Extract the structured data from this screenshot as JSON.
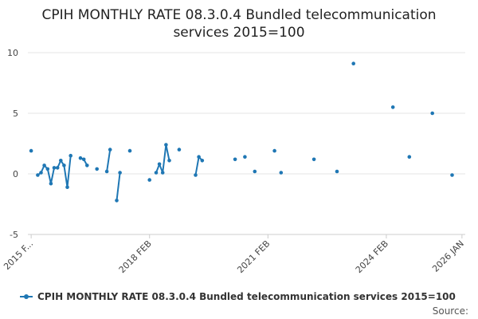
{
  "colors": {
    "series": "#1f77b4",
    "grid": "#e6e6e6",
    "axis": "#cccccc"
  },
  "source_label": "Source:",
  "chart_data": {
    "type": "line",
    "title_line1": "CPIH MONTHLY RATE 08.3.0.4 Bundled telecommunication",
    "title_line2": "services 2015=100",
    "ylim": [
      -5,
      10
    ],
    "yticks": [
      -5,
      0,
      5,
      10
    ],
    "xlim": [
      "2015-01",
      "2026-02"
    ],
    "xticks": [
      {
        "x": "2015-02",
        "label": "2015 F..."
      },
      {
        "x": "2018-02",
        "label": "2018 FEB"
      },
      {
        "x": "2021-02",
        "label": "2021 FEB"
      },
      {
        "x": "2024-02",
        "label": "2024 FEB"
      },
      {
        "x": "2026-01",
        "label": "2026 JAN"
      }
    ],
    "grid": "horizontal",
    "legend_position": "bottom",
    "series": [
      {
        "name": "CPIH MONTHLY RATE 08.3.0.4 Bundled telecommunication services 2015=100",
        "segments": [
          [
            [
              "2015-02",
              1.9
            ]
          ],
          [
            [
              "2015-04",
              -0.1
            ],
            [
              "2015-05",
              0.1
            ],
            [
              "2015-06",
              0.7
            ],
            [
              "2015-07",
              0.4
            ],
            [
              "2015-08",
              -0.8
            ],
            [
              "2015-09",
              0.5
            ],
            [
              "2015-10",
              0.5
            ],
            [
              "2015-11",
              1.1
            ],
            [
              "2015-12",
              0.7
            ],
            [
              "2016-01",
              -1.1
            ],
            [
              "2016-02",
              1.5
            ]
          ],
          [
            [
              "2016-05",
              1.3
            ],
            [
              "2016-06",
              1.2
            ],
            [
              "2016-07",
              0.7
            ]
          ],
          [
            [
              "2016-10",
              0.4
            ]
          ],
          [
            [
              "2017-01",
              0.2
            ],
            [
              "2017-02",
              2.0
            ]
          ],
          [
            [
              "2017-04",
              -2.2
            ],
            [
              "2017-05",
              0.1
            ]
          ],
          [
            [
              "2017-08",
              1.9
            ]
          ],
          [
            [
              "2018-02",
              -0.5
            ]
          ],
          [
            [
              "2018-04",
              0.1
            ],
            [
              "2018-05",
              0.8
            ],
            [
              "2018-06",
              0.1
            ],
            [
              "2018-07",
              2.4
            ],
            [
              "2018-08",
              1.1
            ]
          ],
          [
            [
              "2018-11",
              2.0
            ]
          ],
          [
            [
              "2019-04",
              -0.1
            ],
            [
              "2019-05",
              1.4
            ],
            [
              "2019-06",
              1.1
            ]
          ],
          [
            [
              "2020-04",
              1.2
            ]
          ],
          [
            [
              "2020-07",
              1.4
            ]
          ],
          [
            [
              "2020-10",
              0.2
            ]
          ],
          [
            [
              "2021-04",
              1.9
            ]
          ],
          [
            [
              "2021-06",
              0.1
            ]
          ],
          [
            [
              "2022-04",
              1.2
            ]
          ],
          [
            [
              "2022-11",
              0.2
            ]
          ],
          [
            [
              "2023-04",
              9.1
            ]
          ],
          [
            [
              "2024-04",
              5.5
            ]
          ],
          [
            [
              "2024-09",
              1.4
            ]
          ],
          [
            [
              "2025-04",
              5.0
            ]
          ],
          [
            [
              "2025-10",
              -0.1
            ]
          ]
        ]
      }
    ]
  }
}
